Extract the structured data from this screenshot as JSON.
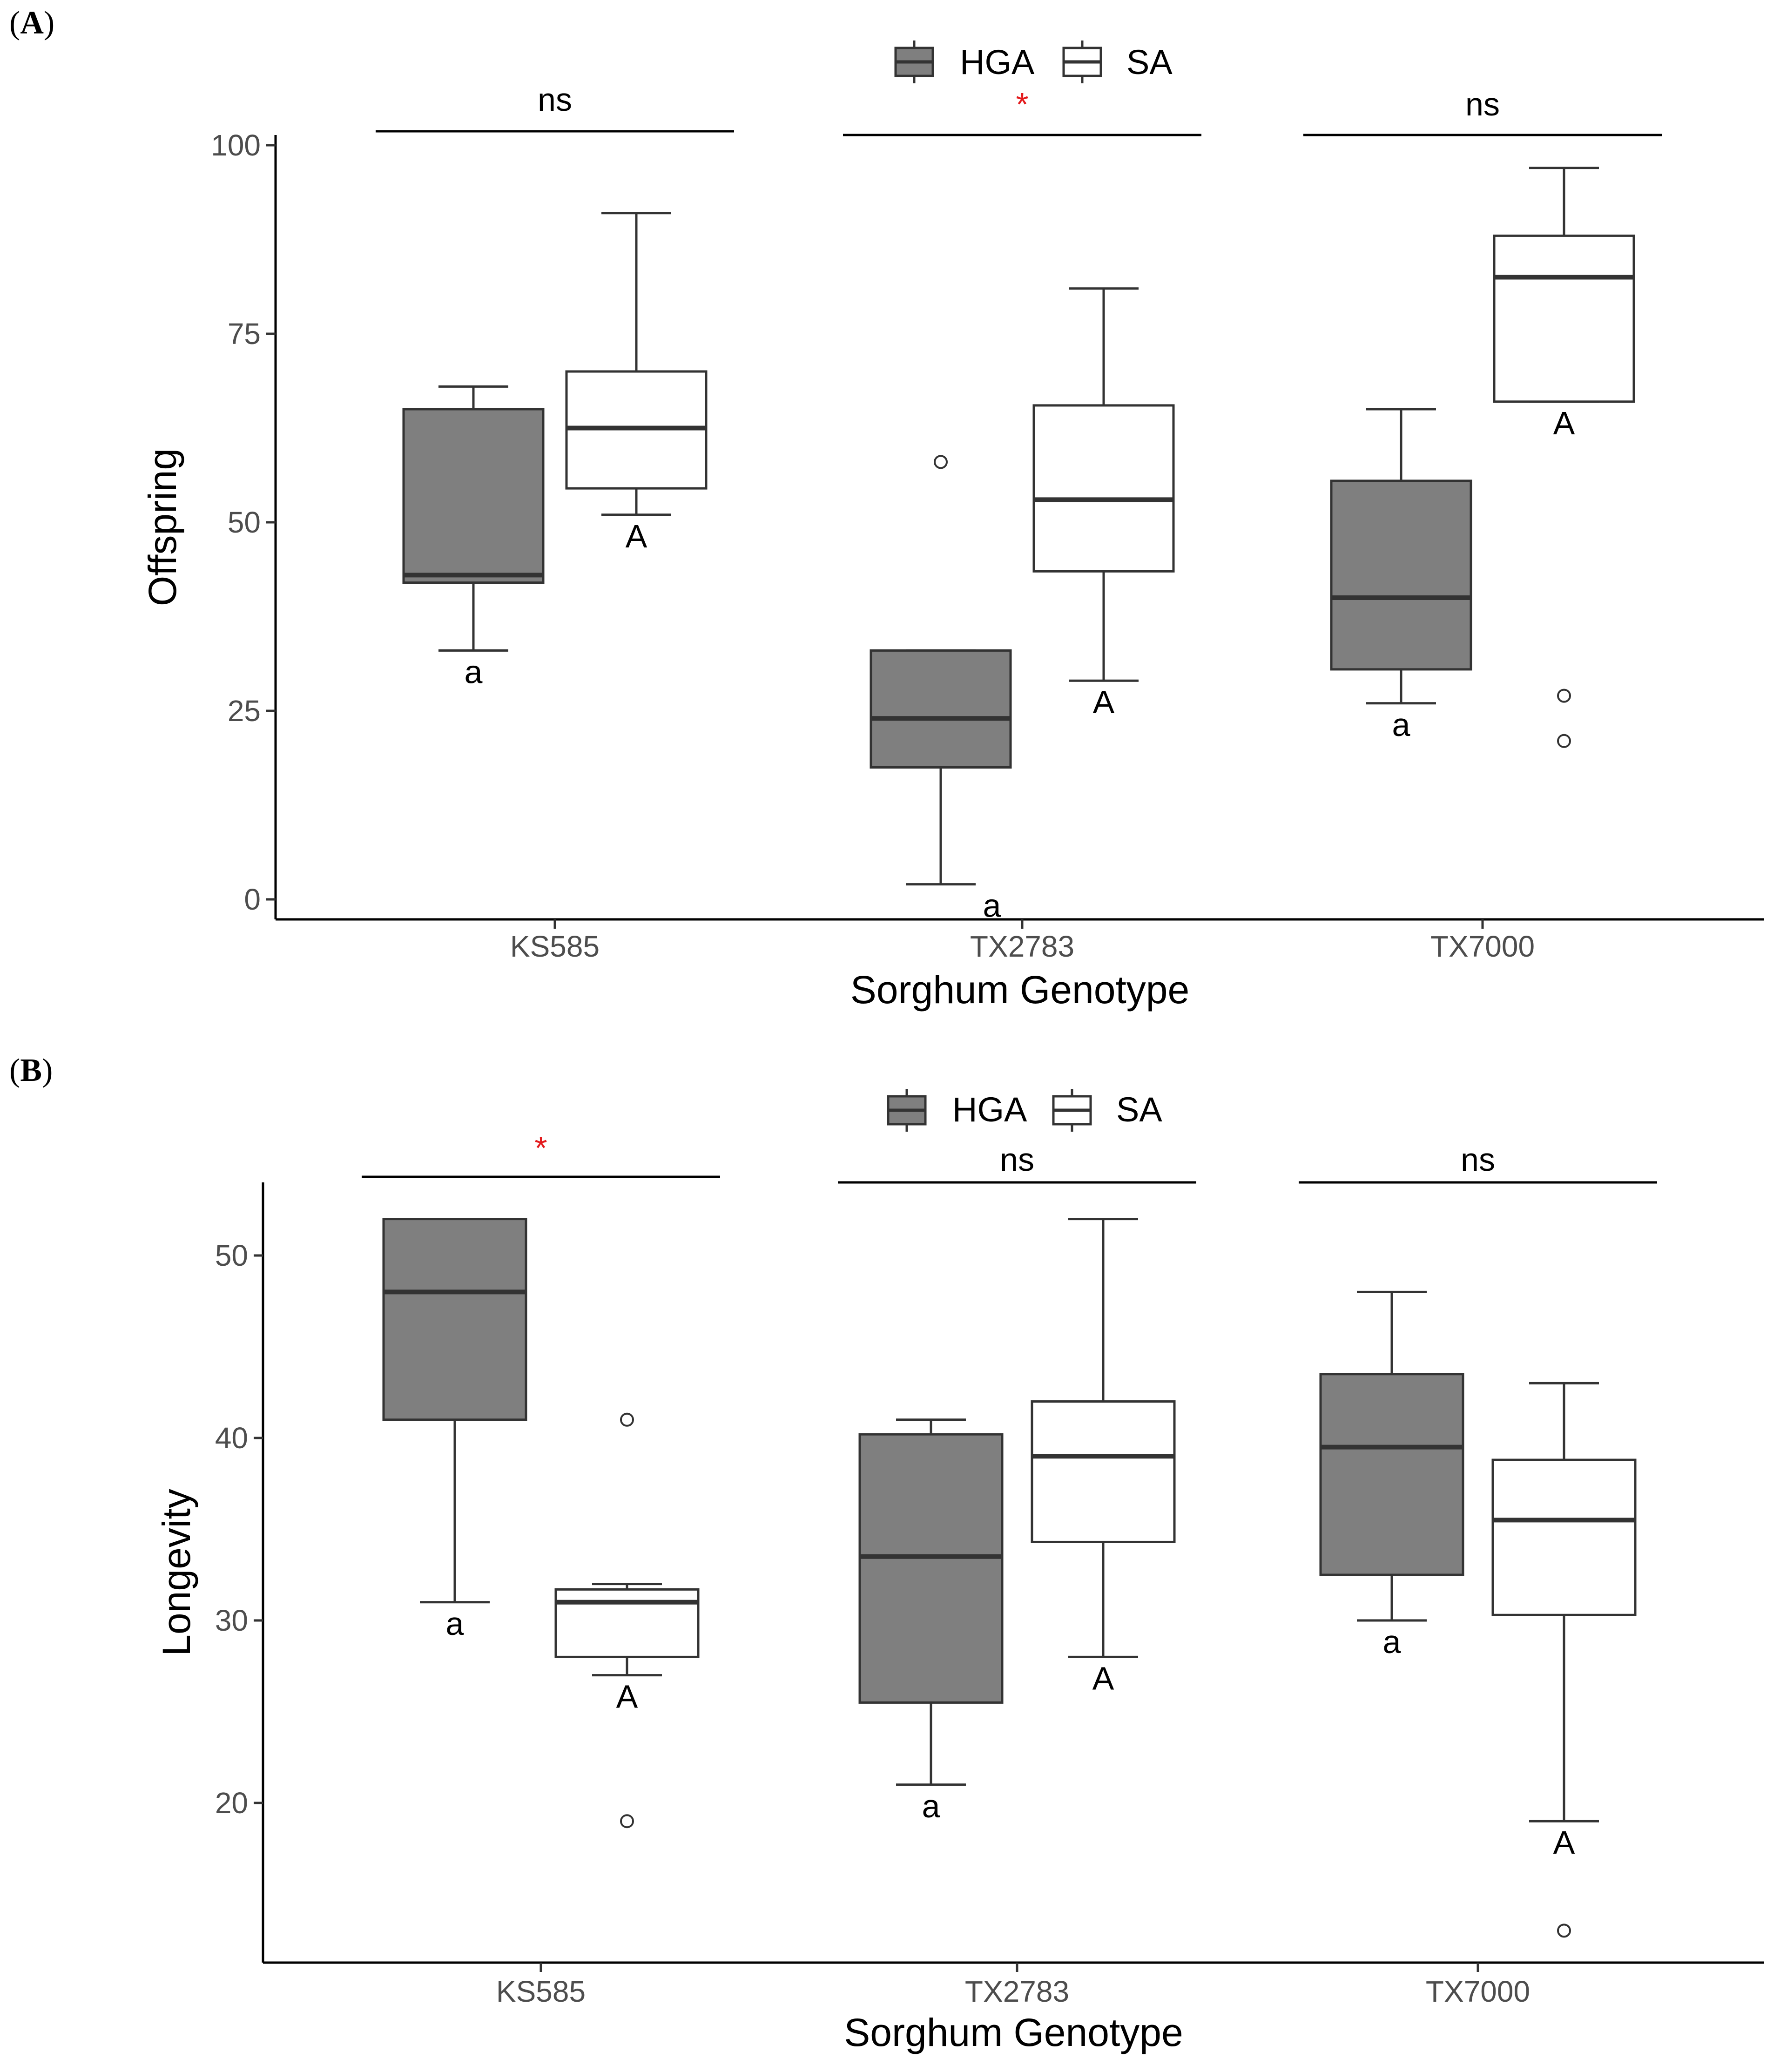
{
  "panels": [
    {
      "tag": "A",
      "legend": [
        {
          "label": "HGA",
          "fill": "#7f7f7f"
        },
        {
          "label": "SA",
          "fill": "#ffffff"
        }
      ],
      "chart_data": {
        "type": "box",
        "title": "",
        "xlabel": "Sorghum Genotype",
        "ylabel": "Offspring",
        "categories": [
          "KS585",
          "TX2783",
          "TX7000"
        ],
        "ylim": [
          0,
          100
        ],
        "yticks": [
          0,
          25,
          50,
          75,
          100
        ],
        "grid": false,
        "legend_position": "top",
        "series": [
          {
            "name": "HGA",
            "fill": "#7f7f7f",
            "boxes": [
              {
                "category": "KS585",
                "min": 33,
                "q1": 42,
                "median": 43,
                "q3": 65,
                "max": 68,
                "outliers": [],
                "letter": "a"
              },
              {
                "category": "TX2783",
                "min": 2,
                "q1": 17.5,
                "median": 24,
                "q3": 33,
                "max": 33,
                "outliers": [
                  58
                ],
                "letter": "a"
              },
              {
                "category": "TX7000",
                "min": 26,
                "q1": 30.5,
                "median": 40,
                "q3": 55.5,
                "max": 65,
                "outliers": [],
                "letter": "a"
              }
            ]
          },
          {
            "name": "SA",
            "fill": "#ffffff",
            "boxes": [
              {
                "category": "KS585",
                "min": 51,
                "q1": 54.5,
                "median": 62.5,
                "q3": 70,
                "max": 91,
                "outliers": [],
                "letter": "A"
              },
              {
                "category": "TX2783",
                "min": 29,
                "q1": 43.5,
                "median": 53,
                "q3": 65.5,
                "max": 81,
                "outliers": [],
                "letter": "A"
              },
              {
                "category": "TX7000",
                "min": 66,
                "q1": 66,
                "median": 82.5,
                "q3": 88,
                "max": 97,
                "outliers": [
                  27,
                  21
                ],
                "letter": "A"
              }
            ]
          }
        ],
        "significance": [
          "ns",
          "*",
          "ns"
        ]
      }
    },
    {
      "tag": "B",
      "legend": [
        {
          "label": "HGA",
          "fill": "#7f7f7f"
        },
        {
          "label": "SA",
          "fill": "#ffffff"
        }
      ],
      "chart_data": {
        "type": "box",
        "title": "",
        "xlabel": "Sorghum Genotype",
        "ylabel": "Longevity",
        "categories": [
          "KS585",
          "TX2783",
          "TX7000"
        ],
        "ylim": [
          11.5,
          54
        ],
        "yticks": [
          20,
          30,
          40,
          50
        ],
        "grid": false,
        "legend_position": "top",
        "series": [
          {
            "name": "HGA",
            "fill": "#7f7f7f",
            "boxes": [
              {
                "category": "KS585",
                "min": 31,
                "q1": 41,
                "median": 48,
                "q3": 52,
                "max": 52,
                "outliers": [],
                "letter": "a"
              },
              {
                "category": "TX2783",
                "min": 21,
                "q1": 25.5,
                "median": 33.5,
                "q3": 40.2,
                "max": 41,
                "outliers": [],
                "letter": "a"
              },
              {
                "category": "TX7000",
                "min": 30,
                "q1": 32.5,
                "median": 39.5,
                "q3": 43.5,
                "max": 48,
                "outliers": [],
                "letter": "a"
              }
            ]
          },
          {
            "name": "SA",
            "fill": "#ffffff",
            "boxes": [
              {
                "category": "KS585",
                "min": 27,
                "q1": 28,
                "median": 31,
                "q3": 31.7,
                "max": 32,
                "outliers": [
                  41,
                  19
                ],
                "letter": "A"
              },
              {
                "category": "TX2783",
                "min": 28,
                "q1": 34.3,
                "median": 39,
                "q3": 42,
                "max": 52,
                "outliers": [],
                "letter": "A"
              },
              {
                "category": "TX7000",
                "min": 19,
                "q1": 30.3,
                "median": 35.5,
                "q3": 38.8,
                "max": 43,
                "outliers": [
                  13
                ],
                "letter": "A"
              }
            ]
          }
        ],
        "significance": [
          "*",
          "ns",
          "ns"
        ]
      }
    }
  ]
}
